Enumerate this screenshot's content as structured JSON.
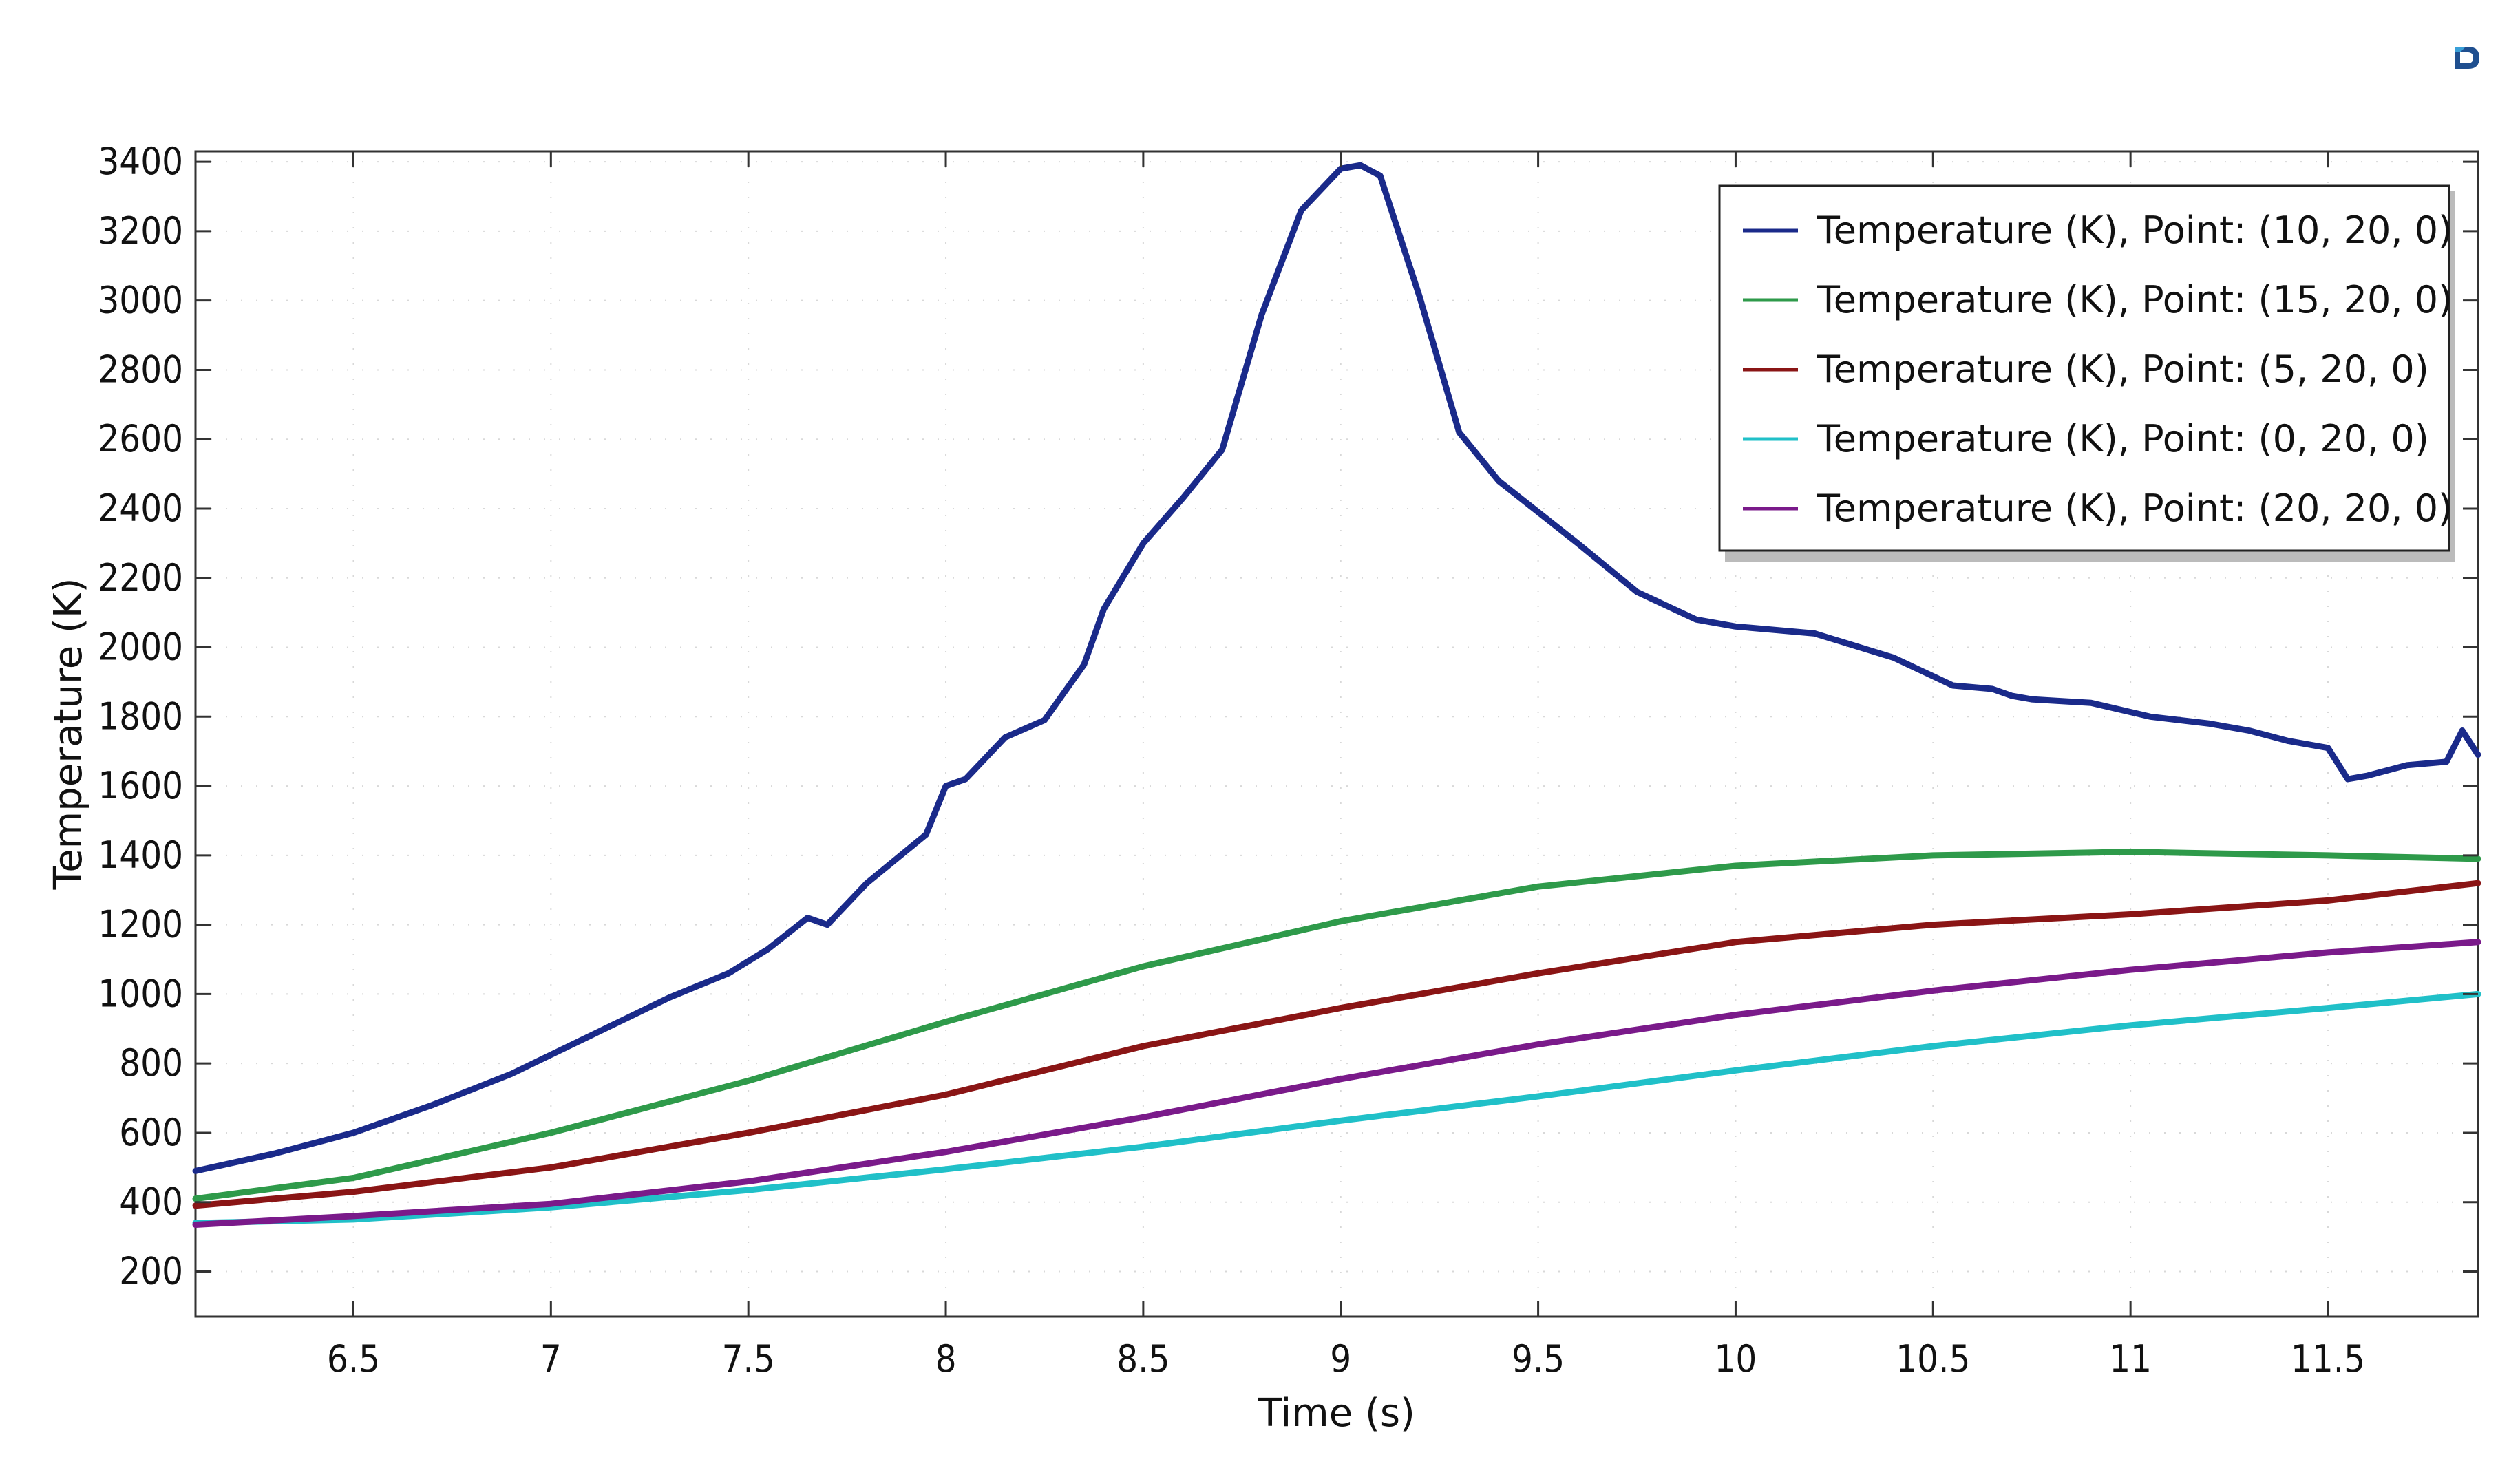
{
  "chart_data": {
    "type": "line",
    "title": "",
    "xlabel": "Time (s)",
    "ylabel": "Temperature (K)",
    "xlim": [
      6.1,
      11.88
    ],
    "ylim": [
      70,
      3430
    ],
    "x_ticks": [
      6.5,
      7,
      7.5,
      8,
      8.5,
      9,
      9.5,
      10,
      10.5,
      11,
      11.5
    ],
    "x_tick_labels": [
      "6.5",
      "7",
      "7.5",
      "8",
      "8.5",
      "9",
      "9.5",
      "10",
      "10.5",
      "11",
      "11.5"
    ],
    "y_ticks": [
      200,
      400,
      600,
      800,
      1000,
      1200,
      1400,
      1600,
      1800,
      2000,
      2200,
      2400,
      2600,
      2800,
      3000,
      3200,
      3400
    ],
    "y_tick_labels": [
      "200",
      "400",
      "600",
      "800",
      "1000",
      "1200",
      "1400",
      "1600",
      "1800",
      "2000",
      "2200",
      "2400",
      "2600",
      "2800",
      "3000",
      "3200",
      "3400"
    ],
    "grid": true,
    "legend_position": "top-right",
    "series": [
      {
        "name": "Temperature (K), Point: (10, 20, 0)",
        "color": "#1a2a8a",
        "points": [
          [
            6.1,
            490
          ],
          [
            6.3,
            540
          ],
          [
            6.5,
            600
          ],
          [
            6.7,
            680
          ],
          [
            6.9,
            770
          ],
          [
            7.1,
            880
          ],
          [
            7.3,
            990
          ],
          [
            7.45,
            1060
          ],
          [
            7.55,
            1130
          ],
          [
            7.65,
            1220
          ],
          [
            7.7,
            1200
          ],
          [
            7.8,
            1320
          ],
          [
            7.95,
            1460
          ],
          [
            8.0,
            1600
          ],
          [
            8.05,
            1620
          ],
          [
            8.15,
            1740
          ],
          [
            8.25,
            1790
          ],
          [
            8.35,
            1950
          ],
          [
            8.4,
            2110
          ],
          [
            8.5,
            2300
          ],
          [
            8.6,
            2430
          ],
          [
            8.7,
            2570
          ],
          [
            8.8,
            2960
          ],
          [
            8.9,
            3260
          ],
          [
            9.0,
            3380
          ],
          [
            9.05,
            3390
          ],
          [
            9.1,
            3360
          ],
          [
            9.2,
            3010
          ],
          [
            9.3,
            2620
          ],
          [
            9.4,
            2480
          ],
          [
            9.6,
            2300
          ],
          [
            9.75,
            2160
          ],
          [
            9.9,
            2080
          ],
          [
            10.0,
            2060
          ],
          [
            10.2,
            2040
          ],
          [
            10.4,
            1970
          ],
          [
            10.55,
            1890
          ],
          [
            10.65,
            1880
          ],
          [
            10.7,
            1860
          ],
          [
            10.75,
            1850
          ],
          [
            10.9,
            1840
          ],
          [
            11.05,
            1800
          ],
          [
            11.2,
            1780
          ],
          [
            11.3,
            1760
          ],
          [
            11.4,
            1730
          ],
          [
            11.5,
            1710
          ],
          [
            11.55,
            1620
          ],
          [
            11.6,
            1630
          ],
          [
            11.7,
            1660
          ],
          [
            11.8,
            1670
          ],
          [
            11.84,
            1760
          ],
          [
            11.88,
            1690
          ]
        ]
      },
      {
        "name": "Temperature (K), Point: (15, 20, 0)",
        "color": "#2e9a4a",
        "points": [
          [
            6.1,
            410
          ],
          [
            6.5,
            470
          ],
          [
            7.0,
            600
          ],
          [
            7.5,
            750
          ],
          [
            8.0,
            920
          ],
          [
            8.5,
            1080
          ],
          [
            9.0,
            1210
          ],
          [
            9.5,
            1310
          ],
          [
            10.0,
            1370
          ],
          [
            10.5,
            1400
          ],
          [
            11.0,
            1410
          ],
          [
            11.5,
            1400
          ],
          [
            11.88,
            1390
          ]
        ]
      },
      {
        "name": "Temperature (K), Point: (5, 20, 0)",
        "color": "#8a1515",
        "points": [
          [
            6.1,
            390
          ],
          [
            6.5,
            430
          ],
          [
            7.0,
            500
          ],
          [
            7.5,
            600
          ],
          [
            8.0,
            710
          ],
          [
            8.5,
            850
          ],
          [
            9.0,
            960
          ],
          [
            9.5,
            1060
          ],
          [
            10.0,
            1150
          ],
          [
            10.5,
            1200
          ],
          [
            11.0,
            1230
          ],
          [
            11.5,
            1270
          ],
          [
            11.88,
            1320
          ]
        ]
      },
      {
        "name": "Temperature (K), Point: (0, 20, 0)",
        "color": "#20c0c8",
        "points": [
          [
            6.1,
            340
          ],
          [
            6.5,
            350
          ],
          [
            7.0,
            385
          ],
          [
            7.5,
            435
          ],
          [
            8.0,
            495
          ],
          [
            8.5,
            560
          ],
          [
            9.0,
            635
          ],
          [
            9.5,
            705
          ],
          [
            10.0,
            780
          ],
          [
            10.5,
            850
          ],
          [
            11.0,
            910
          ],
          [
            11.5,
            960
          ],
          [
            11.88,
            1000
          ]
        ]
      },
      {
        "name": "Temperature (K), Point: (20, 20, 0)",
        "color": "#7a1a8a",
        "points": [
          [
            6.1,
            335
          ],
          [
            6.5,
            360
          ],
          [
            7.0,
            395
          ],
          [
            7.5,
            460
          ],
          [
            8.0,
            545
          ],
          [
            8.5,
            645
          ],
          [
            9.0,
            755
          ],
          [
            9.5,
            855
          ],
          [
            10.0,
            940
          ],
          [
            10.5,
            1010
          ],
          [
            11.0,
            1070
          ],
          [
            11.5,
            1120
          ],
          [
            11.88,
            1150
          ]
        ]
      }
    ]
  }
}
